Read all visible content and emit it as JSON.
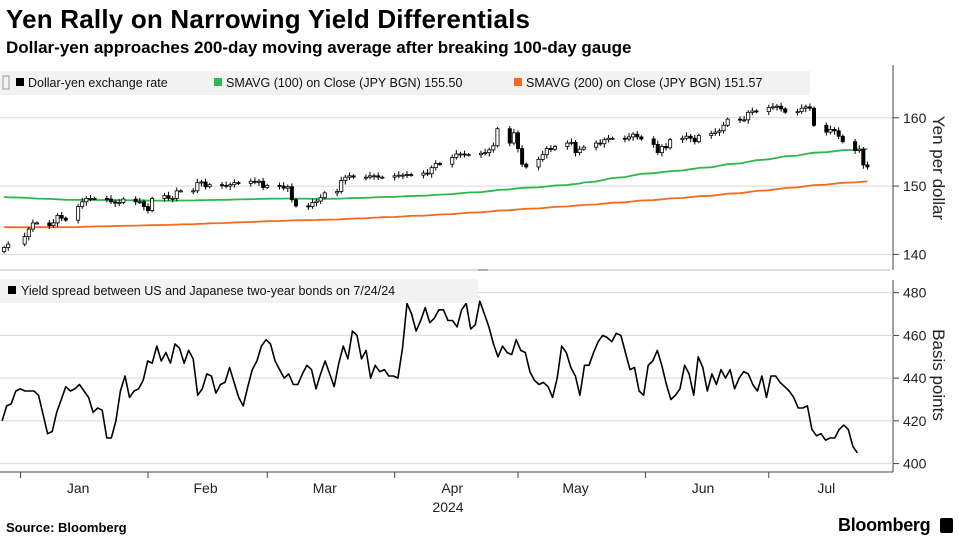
{
  "title": "Yen Rally on Narrowing Yield Differentials",
  "subtitle": "Dollar-yen approaches 200-day moving average after breaking 100-day gauge",
  "source": "Source: Bloomberg",
  "brand": "Bloomberg",
  "colors": {
    "candle": "#000000",
    "sma100": "#2db84a",
    "sma200": "#f26b21",
    "spread": "#000000",
    "grid": "#d9d9d9"
  },
  "chart_data": [
    {
      "type": "candlestick",
      "legend": [
        {
          "label": "Dollar-yen exchange rate",
          "color": "#000000"
        },
        {
          "label": "SMAVG (100)  on Close (JPY BGN) 155.50",
          "color": "#2db84a"
        },
        {
          "label": "SMAVG (200)  on Close (JPY BGN) 151.57",
          "color": "#f26b21"
        }
      ],
      "ylabel": "Yen per dollar",
      "yticks": [
        "160",
        "150",
        "140"
      ],
      "ylim": [
        138,
        167
      ],
      "x_start": "2023-12-27",
      "dates": [
        "2023-12-28",
        "2023-12-29",
        "2024-01-02",
        "2024-01-03",
        "2024-01-04",
        "2024-01-05",
        "2024-01-08",
        "2024-01-09",
        "2024-01-10",
        "2024-01-11",
        "2024-01-12",
        "2024-01-15",
        "2024-01-16",
        "2024-01-17",
        "2024-01-18",
        "2024-01-19",
        "2024-01-22",
        "2024-01-23",
        "2024-01-24",
        "2024-01-25",
        "2024-01-26",
        "2024-01-29",
        "2024-01-30",
        "2024-01-31",
        "2024-02-01",
        "2024-02-02",
        "2024-02-05",
        "2024-02-06",
        "2024-02-07",
        "2024-02-08",
        "2024-02-09",
        "2024-02-12",
        "2024-02-13",
        "2024-02-14",
        "2024-02-15",
        "2024-02-16",
        "2024-02-19",
        "2024-02-20",
        "2024-02-21",
        "2024-02-22",
        "2024-02-23",
        "2024-02-26",
        "2024-02-27",
        "2024-02-28",
        "2024-02-29",
        "2024-03-01",
        "2024-03-04",
        "2024-03-05",
        "2024-03-06",
        "2024-03-07",
        "2024-03-08",
        "2024-03-11",
        "2024-03-12",
        "2024-03-13",
        "2024-03-14",
        "2024-03-15",
        "2024-03-18",
        "2024-03-19",
        "2024-03-20",
        "2024-03-21",
        "2024-03-22",
        "2024-03-25",
        "2024-03-26",
        "2024-03-27",
        "2024-03-28",
        "2024-03-29",
        "2024-04-01",
        "2024-04-02",
        "2024-04-03",
        "2024-04-04",
        "2024-04-05",
        "2024-04-08",
        "2024-04-09",
        "2024-04-10",
        "2024-04-11",
        "2024-04-12",
        "2024-04-15",
        "2024-04-16",
        "2024-04-17",
        "2024-04-18",
        "2024-04-19",
        "2024-04-22",
        "2024-04-23",
        "2024-04-24",
        "2024-04-25",
        "2024-04-26",
        "2024-04-29",
        "2024-04-30",
        "2024-05-01",
        "2024-05-02",
        "2024-05-03",
        "2024-05-06",
        "2024-05-07",
        "2024-05-08",
        "2024-05-09",
        "2024-05-10",
        "2024-05-13",
        "2024-05-14",
        "2024-05-15",
        "2024-05-16",
        "2024-05-17",
        "2024-05-20",
        "2024-05-21",
        "2024-05-22",
        "2024-05-23",
        "2024-05-24",
        "2024-05-27",
        "2024-05-28",
        "2024-05-29",
        "2024-05-30",
        "2024-05-31",
        "2024-06-03",
        "2024-06-04",
        "2024-06-05",
        "2024-06-06",
        "2024-06-07",
        "2024-06-10",
        "2024-06-11",
        "2024-06-12",
        "2024-06-13",
        "2024-06-14",
        "2024-06-17",
        "2024-06-18",
        "2024-06-19",
        "2024-06-20",
        "2024-06-21",
        "2024-06-24",
        "2024-06-25",
        "2024-06-26",
        "2024-06-27",
        "2024-06-28",
        "2024-07-01",
        "2024-07-02",
        "2024-07-03",
        "2024-07-04",
        "2024-07-05",
        "2024-07-08",
        "2024-07-09",
        "2024-07-10",
        "2024-07-11",
        "2024-07-12",
        "2024-07-15",
        "2024-07-16",
        "2024-07-17",
        "2024-07-18",
        "2024-07-19",
        "2024-07-22",
        "2024-07-23",
        "2024-07-24",
        "2024-07-25"
      ],
      "close": [
        141.0,
        141.5,
        142.6,
        143.7,
        144.6,
        144.6,
        144.2,
        144.6,
        145.7,
        145.3,
        145.0,
        147.0,
        147.7,
        148.2,
        148.2,
        148.2,
        148.1,
        147.7,
        147.5,
        147.6,
        148.1,
        147.7,
        147.7,
        147.0,
        146.4,
        148.2,
        148.6,
        148.2,
        148.2,
        149.3,
        149.3,
        149.3,
        150.5,
        150.6,
        149.9,
        150.2,
        150.1,
        150.0,
        150.2,
        150.5,
        150.4,
        150.7,
        150.6,
        150.7,
        149.8,
        150.1,
        150.0,
        149.7,
        149.9,
        148.0,
        147.1,
        147.0,
        147.6,
        147.8,
        148.3,
        149.0,
        149.2,
        150.8,
        151.3,
        151.5,
        151.3,
        151.3,
        151.5,
        151.5,
        151.3,
        151.3,
        151.5,
        151.6,
        151.6,
        151.7,
        151.6,
        151.9,
        151.8,
        152.7,
        153.3,
        153.2,
        154.2,
        154.7,
        154.7,
        154.6,
        154.6,
        154.8,
        154.9,
        155.3,
        155.9,
        158.4,
        156.3,
        157.8,
        155.5,
        153.2,
        152.8,
        153.9,
        154.6,
        155.5,
        155.4,
        155.8,
        156.3,
        156.4,
        154.9,
        155.4,
        155.7,
        156.3,
        156.2,
        156.8,
        157.0,
        157.0,
        156.9,
        157.2,
        157.6,
        157.2,
        156.9,
        156.1,
        154.9,
        155.8,
        155.6,
        156.8,
        157.0,
        157.3,
        157.0,
        156.5,
        157.4,
        157.7,
        157.9,
        158.1,
        158.9,
        159.8,
        159.7,
        159.7,
        160.8,
        161.0,
        160.9,
        161.5,
        161.6,
        161.7,
        161.3,
        160.8,
        160.9,
        161.4,
        161.6,
        161.4,
        158.9,
        157.9,
        158.3,
        158.1,
        157.3,
        156.5,
        155.2,
        155.4,
        153.1,
        152.8
      ]
    },
    {
      "type": "line",
      "legend": [
        {
          "label": "Yield spread between US and Japanese two-year bonds on 7/24/24",
          "color": "#000000"
        }
      ],
      "ylabel": "Basis points",
      "yticks": [
        "480",
        "460",
        "440",
        "420",
        "400"
      ],
      "ylim": [
        397,
        485
      ],
      "values": [
        420,
        427,
        428,
        434,
        435,
        434,
        434,
        434,
        432,
        423,
        414,
        415,
        424,
        430,
        436,
        434,
        435,
        437,
        434,
        431,
        424,
        426,
        425,
        412,
        412,
        420,
        434,
        441,
        431,
        434,
        435,
        439,
        448,
        447,
        455,
        448,
        452,
        447,
        456,
        454,
        447,
        453,
        449,
        432,
        435,
        442,
        441,
        433,
        437,
        438,
        445,
        438,
        431,
        427,
        436,
        444,
        448,
        455,
        458,
        456,
        448,
        444,
        440,
        442,
        437,
        437,
        442,
        446,
        444,
        435,
        442,
        448,
        442,
        436,
        447,
        455,
        449,
        462,
        460,
        449,
        453,
        440,
        446,
        443,
        444,
        441,
        441,
        440,
        454,
        475,
        470,
        462,
        467,
        473,
        466,
        468,
        472,
        472,
        467,
        467,
        464,
        472,
        475,
        463,
        465,
        476,
        470,
        464,
        456,
        450,
        455,
        452,
        451,
        458,
        453,
        452,
        443,
        439,
        437,
        438,
        436,
        431,
        440,
        455,
        452,
        445,
        441,
        432,
        446,
        446,
        452,
        457,
        460,
        459,
        457,
        461,
        460,
        452,
        444,
        445,
        434,
        432,
        446,
        448,
        453,
        446,
        437,
        430,
        432,
        435,
        446,
        442,
        432,
        450,
        445,
        434,
        442,
        437,
        444,
        440,
        444,
        435,
        440,
        443,
        442,
        437,
        434,
        441,
        431,
        441,
        441,
        438,
        436,
        434,
        431,
        426,
        426,
        427,
        416,
        413,
        414,
        411,
        412,
        412,
        416,
        418,
        416,
        408,
        405
      ]
    },
    {
      "xaxis": {
        "months": [
          {
            "label": "Jan",
            "date": "2024-01-15"
          },
          {
            "label": "Feb",
            "date": "2024-02-15"
          },
          {
            "label": "Mar",
            "date": "2024-03-15"
          },
          {
            "label": "Apr",
            "date": "2024-04-15"
          },
          {
            "label": "May",
            "date": "2024-05-15"
          },
          {
            "label": "Jun",
            "date": "2024-06-15"
          },
          {
            "label": "Jul",
            "date": "2024-07-15"
          }
        ],
        "year": "2024",
        "range": [
          "2023-12-27",
          "2024-07-30"
        ]
      }
    }
  ]
}
